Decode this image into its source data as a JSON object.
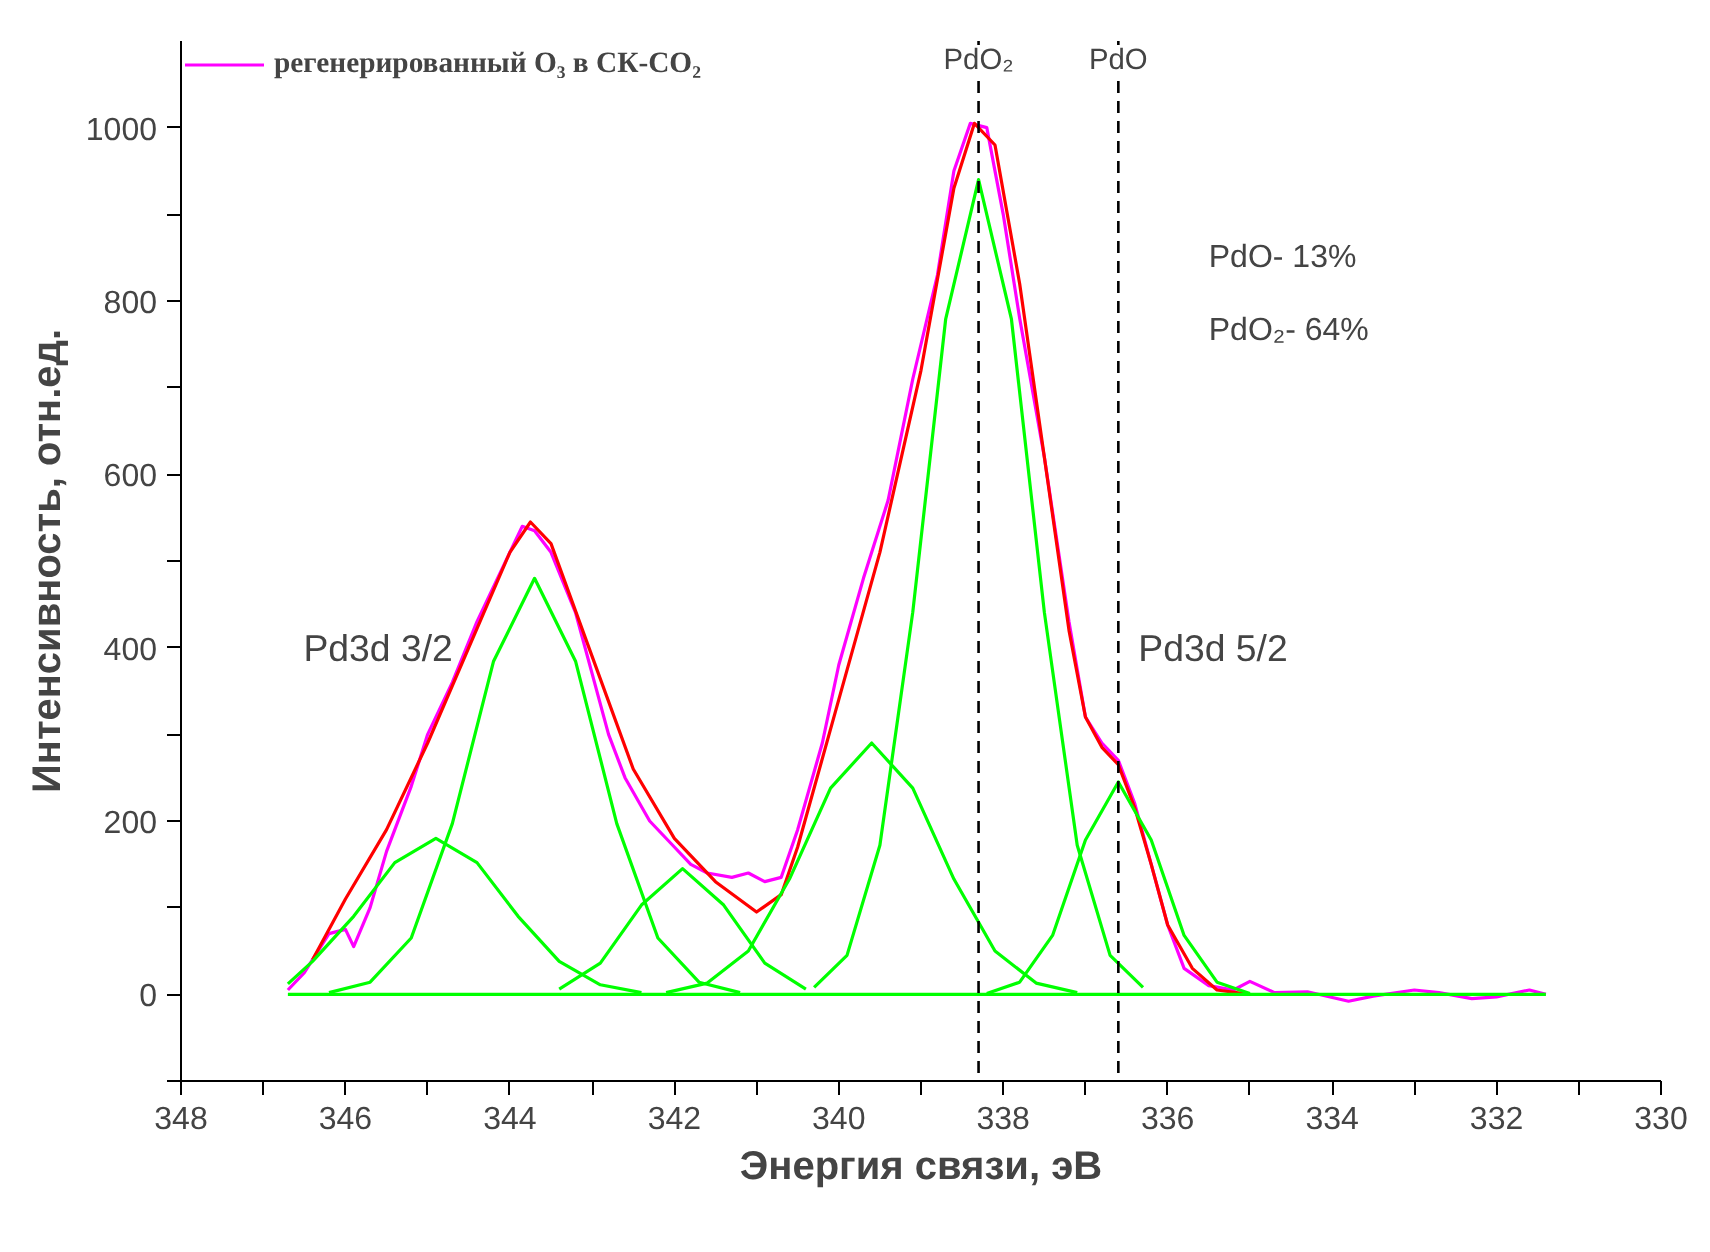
{
  "chart_data": {
    "type": "line",
    "xlabel": "Энергия связи, эВ",
    "ylabel": "Интенсивность, отн.ед.",
    "xlim": [
      348,
      330
    ],
    "ylim": [
      -100,
      1100
    ],
    "xticks": [
      348,
      {
        "value": 347,
        "label": null
      },
      346,
      {
        "value": 345,
        "label": null
      },
      344,
      {
        "value": 343,
        "label": null
      },
      342,
      {
        "value": 341,
        "label": null
      },
      340,
      {
        "value": 339,
        "label": null
      },
      338,
      {
        "value": 337,
        "label": null
      },
      336,
      {
        "value": 335,
        "label": null
      },
      334,
      {
        "value": 333,
        "label": null
      },
      332,
      {
        "value": 331,
        "label": null
      },
      330
    ],
    "yticks": [
      {
        "value": -100,
        "label": null
      },
      0,
      {
        "value": 100,
        "label": null
      },
      200,
      {
        "value": 300,
        "label": null
      },
      400,
      {
        "value": 500,
        "label": null
      },
      600,
      {
        "value": 700,
        "label": null
      },
      800,
      {
        "value": 900,
        "label": null
      },
      1000
    ],
    "grid": false,
    "legend": "top left",
    "marker": "none",
    "line_style": "solid",
    "series": [
      {
        "name": "регенерированный O₃ в СК-CO₂",
        "color": "#ff00ff",
        "x": [
          346.7,
          346.5,
          346.2,
          346.0,
          345.9,
          345.7,
          345.5,
          345.2,
          345.0,
          344.7,
          344.4,
          344.1,
          343.85,
          343.7,
          343.5,
          343.2,
          343.0,
          342.8,
          342.6,
          342.3,
          342.0,
          341.8,
          341.6,
          341.3,
          341.1,
          340.9,
          340.7,
          340.5,
          340.2,
          340.0,
          339.7,
          339.4,
          339.1,
          338.8,
          338.6,
          338.4,
          338.2,
          338.0,
          337.8,
          337.5,
          337.2,
          337.0,
          336.8,
          336.6,
          336.4,
          336.2,
          336.0,
          335.8,
          335.5,
          335.2,
          335.0,
          334.7,
          334.3,
          333.8,
          333.5,
          333.0,
          332.7,
          332.3,
          332.0,
          331.6,
          331.4
        ],
        "values": [
          5,
          25,
          70,
          75,
          55,
          100,
          165,
          240,
          300,
          360,
          430,
          490,
          540,
          535,
          510,
          440,
          370,
          300,
          250,
          200,
          170,
          150,
          140,
          135,
          140,
          130,
          135,
          190,
          290,
          380,
          480,
          570,
          710,
          830,
          950,
          1005,
          1000,
          900,
          780,
          620,
          430,
          320,
          290,
          270,
          220,
          150,
          80,
          30,
          10,
          5,
          15,
          2,
          3,
          -8,
          -2,
          5,
          2,
          -5,
          -3,
          5,
          0
        ]
      },
      {
        "color": "#ff0000",
        "x": [
          346.4,
          346.0,
          345.5,
          345.0,
          344.5,
          344.0,
          343.75,
          343.5,
          343.0,
          342.5,
          342.0,
          341.5,
          341.0,
          340.7,
          340.5,
          340.0,
          339.5,
          339.0,
          338.6,
          338.35,
          338.1,
          337.8,
          337.5,
          337.2,
          337.0,
          336.8,
          336.6,
          336.4,
          336.2,
          336.0,
          335.7,
          335.4,
          335.0
        ],
        "values": [
          40,
          110,
          190,
          290,
          400,
          510,
          545,
          520,
          390,
          260,
          180,
          130,
          95,
          115,
          170,
          340,
          510,
          720,
          930,
          1005,
          980,
          820,
          620,
          420,
          320,
          285,
          265,
          215,
          150,
          80,
          30,
          5,
          0
        ]
      },
      {
        "color": "#00ff00",
        "x": [
          346.7,
          331.4
        ],
        "values": [
          0,
          0
        ]
      },
      {
        "color": "#00ff00",
        "x": [
          346.7,
          346.4,
          345.9,
          345.4,
          344.9,
          344.4,
          343.9,
          343.4,
          342.9,
          342.4
        ],
        "values": [
          12,
          38,
          90,
          152,
          180,
          152,
          90,
          38,
          11,
          2
        ]
      },
      {
        "color": "#00ff00",
        "x": [
          346.2,
          345.7,
          345.2,
          344.7,
          344.2,
          343.7,
          343.2,
          342.7,
          342.2,
          341.7,
          341.2
        ],
        "values": [
          2,
          14,
          65,
          197,
          384,
          480,
          384,
          197,
          65,
          14,
          2
        ]
      },
      {
        "color": "#00ff00",
        "x": [
          343.4,
          342.9,
          342.4,
          341.9,
          341.4,
          340.9,
          340.4
        ],
        "values": [
          6,
          36,
          103,
          145,
          103,
          36,
          6
        ]
      },
      {
        "color": "#00ff00",
        "x": [
          342.1,
          341.6,
          341.1,
          340.6,
          340.1,
          339.6,
          339.1,
          338.6,
          338.1,
          337.6,
          337.1
        ],
        "values": [
          2,
          13,
          50,
          133,
          238,
          290,
          238,
          133,
          50,
          13,
          2
        ]
      },
      {
        "color": "#00ff00",
        "x": [
          340.3,
          339.9,
          339.5,
          339.1,
          338.7,
          338.3,
          337.9,
          337.5,
          337.1,
          336.7,
          336.3
        ],
        "values": [
          8,
          45,
          172,
          441,
          779,
          940,
          779,
          441,
          172,
          45,
          8
        ]
      },
      {
        "color": "#00ff00",
        "x": [
          338.2,
          337.8,
          337.4,
          337.0,
          336.6,
          336.2,
          335.8,
          335.4,
          335.0
        ],
        "values": [
          1,
          14,
          68,
          178,
          245,
          178,
          68,
          14,
          1
        ]
      }
    ],
    "ref_lines": [
      {
        "axis": "x",
        "value": 338.3,
        "label": "PdO₂",
        "color": "#000000",
        "line_style": "dashed"
      },
      {
        "axis": "x",
        "value": 336.6,
        "label": "PdO",
        "color": "#000000",
        "line_style": "dashed"
      }
    ],
    "annotations": [
      {
        "text": "Pd3d 3/2",
        "x": 344.5,
        "y": 400
      },
      {
        "text": "Pd3d 5/2",
        "x": 336.6,
        "y": 400
      },
      "PdO- 13%",
      "PdO₂- 64%"
    ]
  }
}
